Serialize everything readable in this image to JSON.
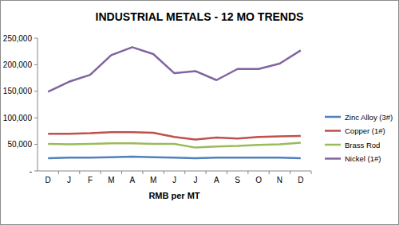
{
  "chart_data": {
    "type": "line",
    "title": "INDUSTRIAL METALS - 12 MO TRENDS",
    "x_label": "RMB per MT",
    "categories": [
      "D",
      "J",
      "F",
      "M",
      "A",
      "M",
      "J",
      "J",
      "A",
      "S",
      "O",
      "N",
      "D"
    ],
    "series": [
      {
        "name": "Zinc Alloy  (3#)",
        "color": "#4f81bd",
        "values": [
          24000,
          25000,
          25000,
          26000,
          27000,
          26000,
          25000,
          24000,
          25000,
          25000,
          25000,
          25000,
          24000
        ]
      },
      {
        "name": "Copper  (1#)",
        "color": "#c0504d",
        "values": [
          70000,
          70000,
          71000,
          73000,
          73000,
          72000,
          64000,
          59000,
          63000,
          61000,
          64000,
          65000,
          66000
        ]
      },
      {
        "name": "Brass Rod",
        "color": "#9bbb59",
        "values": [
          51000,
          50000,
          51000,
          52000,
          52000,
          51000,
          51000,
          44000,
          46000,
          47000,
          49000,
          50000,
          53000
        ]
      },
      {
        "name": "Nickel (1#)",
        "color": "#8064a2",
        "values": [
          149000,
          168000,
          181000,
          218000,
          233000,
          220000,
          184000,
          188000,
          171000,
          192000,
          192000,
          202000,
          227000
        ]
      }
    ],
    "ylim": [
      0,
      250000
    ],
    "yticks": [
      {
        "value": 0,
        "label": "-"
      },
      {
        "value": 50000,
        "label": "50,000"
      },
      {
        "value": 100000,
        "label": "100,000"
      },
      {
        "value": 150000,
        "label": "150,000"
      },
      {
        "value": 200000,
        "label": "200,000"
      },
      {
        "value": 250000,
        "label": "250,000"
      }
    ],
    "grid": false,
    "legend": "right"
  }
}
